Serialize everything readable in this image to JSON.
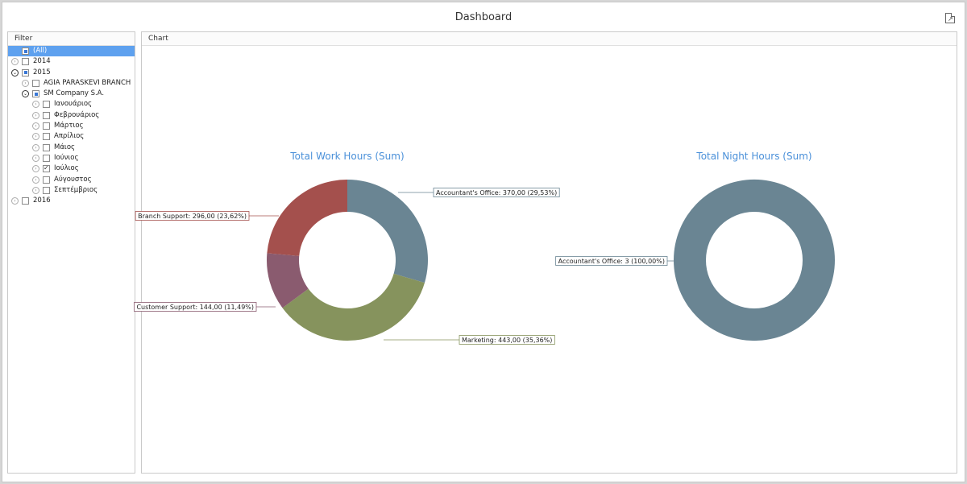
{
  "window": {
    "title": "Dashboard",
    "export_icon": "export-icon"
  },
  "filter": {
    "header": "Filter",
    "items": [
      {
        "label": "(All)",
        "level": 0,
        "expander": "none",
        "check": "partial",
        "selected": true
      },
      {
        "label": "2014",
        "level": 0,
        "expander": "closed",
        "check": "none",
        "selected": false
      },
      {
        "label": "2015",
        "level": 0,
        "expander": "open",
        "check": "partial",
        "selected": false
      },
      {
        "label": "AGIA PARASKEVI BRANCH",
        "level": 1,
        "expander": "closed",
        "check": "none",
        "selected": false
      },
      {
        "label": "SM Company S.A.",
        "level": 1,
        "expander": "open",
        "check": "partial",
        "selected": false
      },
      {
        "label": "Ιανουάριος",
        "level": 2,
        "expander": "closed",
        "check": "none",
        "selected": false
      },
      {
        "label": "Φεβρουάριος",
        "level": 2,
        "expander": "closed",
        "check": "none",
        "selected": false
      },
      {
        "label": "Μάρτιος",
        "level": 2,
        "expander": "closed",
        "check": "none",
        "selected": false
      },
      {
        "label": "Απρίλιος",
        "level": 2,
        "expander": "closed",
        "check": "none",
        "selected": false
      },
      {
        "label": "Μάιος",
        "level": 2,
        "expander": "closed",
        "check": "none",
        "selected": false
      },
      {
        "label": "Ιούνιος",
        "level": 2,
        "expander": "closed",
        "check": "none",
        "selected": false
      },
      {
        "label": "Ιούλιος",
        "level": 2,
        "expander": "closed",
        "check": "checked",
        "selected": false
      },
      {
        "label": "Αύγουστος",
        "level": 2,
        "expander": "closed",
        "check": "none",
        "selected": false
      },
      {
        "label": "Σεπτέμβριος",
        "level": 2,
        "expander": "closed",
        "check": "none",
        "selected": false
      },
      {
        "label": "2016",
        "level": 0,
        "expander": "closed",
        "check": "none",
        "selected": false
      }
    ]
  },
  "chart_panel": {
    "header": "Chart"
  },
  "chart_data": [
    {
      "type": "pie",
      "title": "Total Work Hours (Sum)",
      "slices": [
        {
          "name": "Accountant's Office",
          "value": 370.0,
          "label": "Accountant's Office: 370,00 (29,53%)",
          "color": "#6a8593"
        },
        {
          "name": "Marketing",
          "value": 443.0,
          "label": "Marketing: 443,00 (35,36%)",
          "color": "#86935d"
        },
        {
          "name": "Customer Support",
          "value": 144.0,
          "label": "Customer Support: 144,00 (11,49%)",
          "color": "#8a5b6f"
        },
        {
          "name": "Branch Support",
          "value": 296.0,
          "label": "Branch Support: 296,00 (23,62%)",
          "color": "#a4504d"
        }
      ]
    },
    {
      "type": "pie",
      "title": "Total Night Hours (Sum)",
      "slices": [
        {
          "name": "Accountant's Office",
          "value": 3,
          "label": "Accountant's Office: 3 (100,00%)",
          "color": "#6a8593"
        }
      ]
    }
  ],
  "colors": {
    "title_blue": "#4a90d9",
    "selection": "#5ea1ef"
  }
}
